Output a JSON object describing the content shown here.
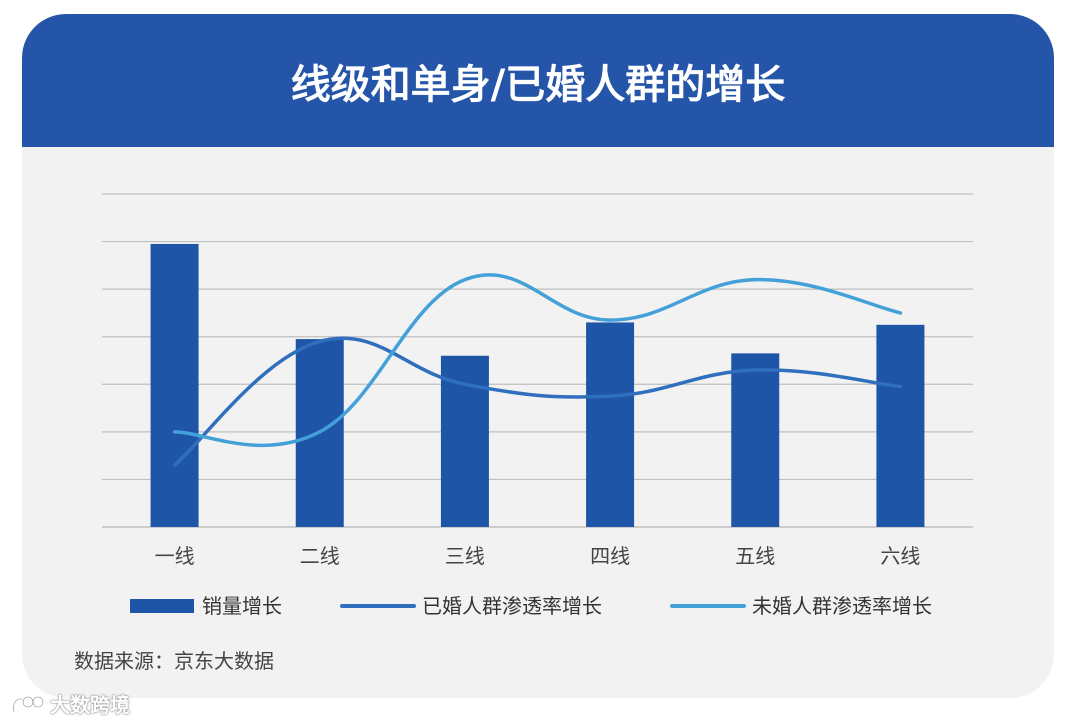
{
  "chart_data": {
    "type": "bar",
    "title": "线级和单身/已婚人群的增长",
    "categories": [
      "一线",
      "二线",
      "三线",
      "四线",
      "五线",
      "六线"
    ],
    "ylim": [
      0,
      7
    ],
    "grid": true,
    "legend_position": "bottom",
    "series": [
      {
        "name": "销量增长",
        "type": "bar",
        "color": "#1f55a6",
        "values": [
          5.95,
          3.95,
          3.6,
          4.3,
          3.65,
          4.25
        ]
      },
      {
        "name": "已婚人群渗透率增长",
        "type": "line",
        "color": "#2f6fbd",
        "values": [
          1.3,
          3.9,
          3.0,
          2.75,
          3.3,
          2.95
        ]
      },
      {
        "name": "未婚人群渗透率增长",
        "type": "line",
        "color": "#43a0d9",
        "values": [
          2.0,
          2.0,
          5.2,
          4.35,
          5.2,
          4.5
        ]
      }
    ]
  },
  "source": "数据来源：京东大数据",
  "watermark": "大数跨境",
  "colors": {
    "header": "#2455a8",
    "card": "#f2f2f2",
    "grid": "#bfbfbf"
  }
}
